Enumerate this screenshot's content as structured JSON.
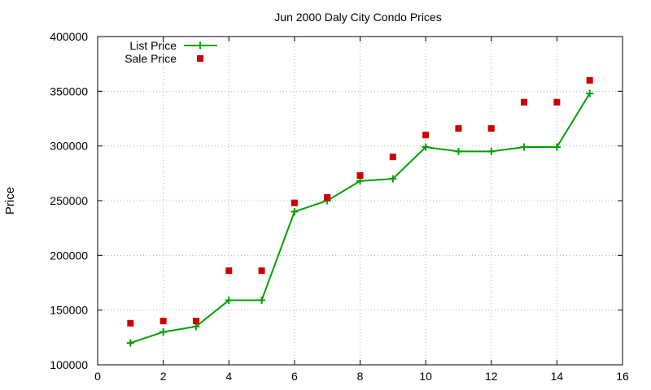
{
  "chart_data": {
    "type": "line",
    "title": "Jun 2000 Daly City Condo Prices",
    "xlabel": "",
    "ylabel": "Price",
    "xlim": [
      0,
      16
    ],
    "ylim": [
      100000,
      400000
    ],
    "x_ticks": [
      0,
      2,
      4,
      6,
      8,
      10,
      12,
      14,
      16
    ],
    "y_ticks": [
      100000,
      150000,
      200000,
      250000,
      300000,
      350000,
      400000
    ],
    "grid": true,
    "legend_position": "top-left",
    "series": [
      {
        "name": "List Price",
        "style": "linespoints",
        "marker": "plus",
        "color": "#00a000",
        "x": [
          1,
          2,
          3,
          4,
          5,
          6,
          7,
          8,
          9,
          10,
          11,
          12,
          13,
          14,
          15
        ],
        "y": [
          120000,
          130000,
          135000,
          159000,
          159000,
          240000,
          250000,
          268000,
          270000,
          299000,
          295000,
          295000,
          299000,
          299000,
          348000
        ]
      },
      {
        "name": "Sale Price",
        "style": "points",
        "marker": "square",
        "color": "#cc0000",
        "x": [
          1,
          2,
          3,
          4,
          5,
          6,
          7,
          8,
          9,
          10,
          11,
          12,
          13,
          14,
          15
        ],
        "y": [
          138000,
          140000,
          140000,
          186000,
          186000,
          248000,
          253000,
          273000,
          290000,
          310000,
          316000,
          316000,
          340000,
          340000,
          360000
        ]
      }
    ]
  }
}
